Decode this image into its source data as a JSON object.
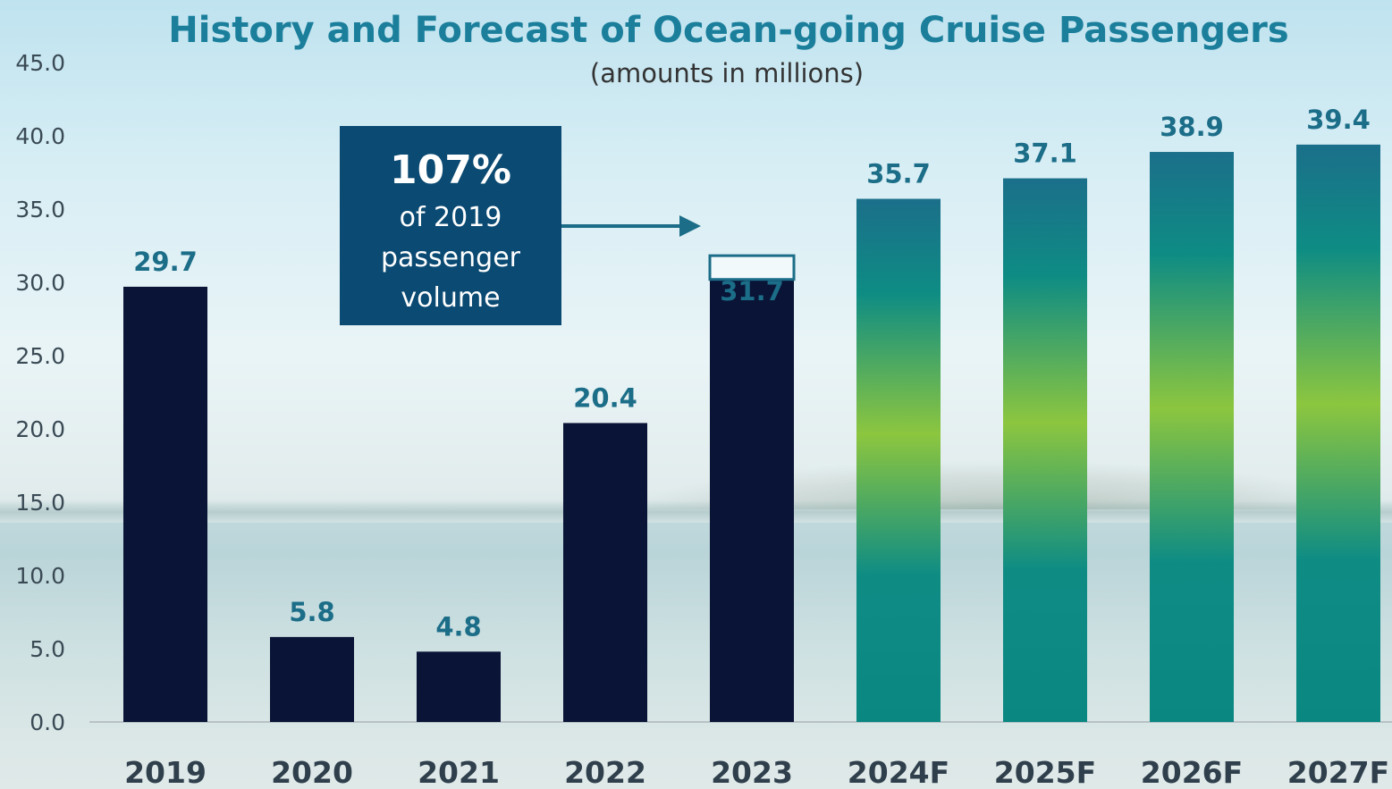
{
  "chart_data": {
    "type": "bar",
    "title": "History and Forecast of Ocean-going Cruise Passengers",
    "subtitle": "(amounts in millions)",
    "categories": [
      "2019",
      "2020",
      "2021",
      "2022",
      "2023",
      "2024F",
      "2025F",
      "2026F",
      "2027F"
    ],
    "values": [
      29.7,
      5.8,
      4.8,
      20.4,
      31.7,
      35.7,
      37.1,
      38.9,
      39.4
    ],
    "data_labels": [
      "29.7",
      "5.8",
      "4.8",
      "20.4",
      "31.7",
      "35.7",
      "37.1",
      "38.9",
      "39.4"
    ],
    "forecast": [
      false,
      false,
      false,
      false,
      false,
      true,
      true,
      true,
      true
    ],
    "ylim": [
      0,
      45
    ],
    "yticks": [
      "0.0",
      "5.0",
      "10.0",
      "15.0",
      "20.0",
      "25.0",
      "30.0",
      "35.0",
      "40.0",
      "45.0"
    ],
    "grid": false,
    "legend": "none",
    "annotation": {
      "headline": "107%",
      "lines": [
        "of 2019",
        "passenger",
        "volume"
      ],
      "target_category": "2023"
    },
    "colors": {
      "actual_bar": "#0a1436",
      "forecast_bar_gradient": [
        "#1b6f8a",
        "#0e8c84",
        "#8cc63f",
        "#0e8c84",
        "#0b8782"
      ],
      "annotation_box": "#0b4a72",
      "title": "#1b7f9c",
      "data_label": "#1b6d88",
      "axis_line": "#b8c2c6"
    }
  }
}
